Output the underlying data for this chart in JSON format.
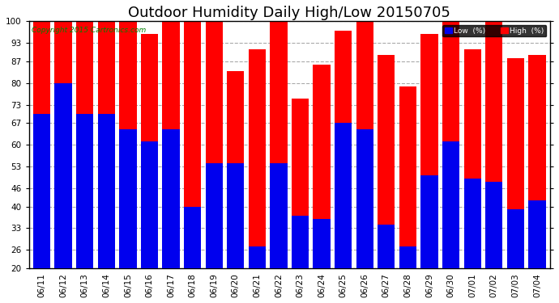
{
  "title": "Outdoor Humidity Daily High/Low 20150705",
  "copyright": "Copyright 2015 Cartronics.com",
  "categories": [
    "06/11",
    "06/12",
    "06/13",
    "06/14",
    "06/15",
    "06/16",
    "06/17",
    "06/18",
    "06/19",
    "06/20",
    "06/21",
    "06/22",
    "06/23",
    "06/24",
    "06/25",
    "06/26",
    "06/27",
    "06/28",
    "06/29",
    "06/30",
    "07/01",
    "07/02",
    "07/03",
    "07/04"
  ],
  "high_values": [
    100,
    100,
    100,
    100,
    100,
    96,
    100,
    100,
    100,
    84,
    91,
    100,
    75,
    86,
    97,
    100,
    89,
    79,
    96,
    100,
    91,
    100,
    88,
    89
  ],
  "low_values": [
    70,
    80,
    70,
    70,
    65,
    61,
    65,
    40,
    54,
    54,
    27,
    54,
    37,
    36,
    67,
    65,
    34,
    27,
    50,
    61,
    49,
    48,
    39,
    42
  ],
  "high_color": "#ff0000",
  "low_color": "#0000ee",
  "bg_color": "#ffffff",
  "plot_bg_color": "#ffffff",
  "grid_color": "#aaaaaa",
  "ylim_min": 20,
  "ylim_max": 100,
  "yticks": [
    20,
    26,
    33,
    40,
    46,
    53,
    60,
    67,
    73,
    80,
    87,
    93,
    100
  ],
  "legend_low_label": "Low  (%)",
  "legend_high_label": "High  (%)",
  "title_fontsize": 13,
  "tick_fontsize": 7.5,
  "bar_width": 0.8
}
